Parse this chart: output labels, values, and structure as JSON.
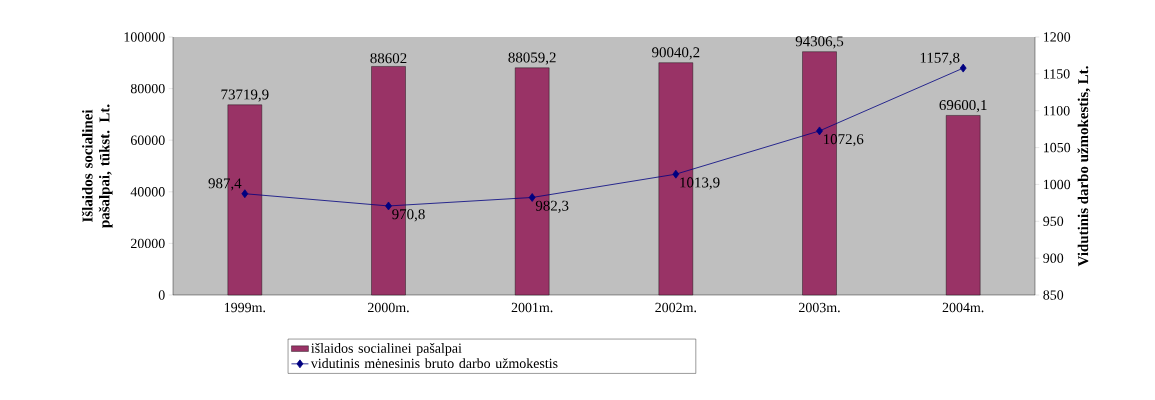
{
  "chart_data": {
    "type": "bar",
    "categories": [
      "1999m.",
      "2000m.",
      "2001m.",
      "2002m.",
      "2003m.",
      "2004m."
    ],
    "series": [
      {
        "name": "išlaidos socialinei pašalpai",
        "color": "#993366",
        "values": [
          73719.9,
          88602,
          88059.2,
          90040.2,
          94306.5,
          69600.1
        ],
        "value_labels": [
          "73719,9",
          "88602",
          "88059,2",
          "90040,2",
          "94306,5",
          "69600,1"
        ]
      },
      {
        "type": "line",
        "name": "vidutinis mėnesinis bruto darbo užmokestis",
        "color": "#000080",
        "axis": "y2",
        "marker": "diamond",
        "values": [
          987.4,
          970.8,
          982.3,
          1013.9,
          1072.6,
          1157.8
        ],
        "value_labels": [
          "987,4",
          "970,8",
          "982,3",
          "1013,9",
          "1072,6",
          "1157,8"
        ]
      }
    ],
    "ylabel": "Išlaidos socialinei pašalpai, tūkst. Lt.",
    "y2label": "Vidutinis darbo užmokestis, Lt.",
    "ylim": [
      0,
      100000
    ],
    "yticks": [
      0,
      20000,
      40000,
      60000,
      80000,
      100000
    ],
    "y2lim": [
      850,
      1200
    ],
    "y2ticks": [
      850,
      900,
      950,
      1000,
      1050,
      1100,
      1150,
      1200
    ],
    "legend": "bottom"
  }
}
